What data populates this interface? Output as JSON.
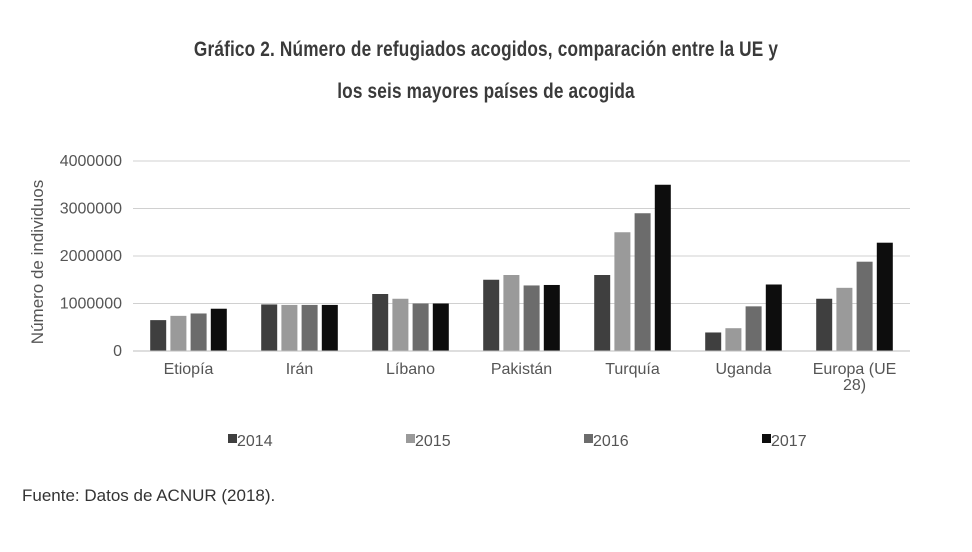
{
  "title_line1": "Gráfico 2. Número de refugiados acogidos, comparación entre la UE y",
  "title_line2": "los seis mayores países de acogida",
  "source": "Fuente: Datos de ACNUR (2018).",
  "chart_data": {
    "type": "bar",
    "ylabel": "Número de individuos",
    "ylim": [
      0,
      4000000
    ],
    "yticks": [
      "0",
      "1000000",
      "2000000",
      "3000000",
      "4000000"
    ],
    "grid": true,
    "legend_position": "bottom",
    "categories": [
      "Etiopía",
      "Irán",
      "Líbano",
      "Pakistán",
      "Turquía",
      "Uganda",
      "Europa (UE 28)"
    ],
    "category_lines": [
      [
        "Etiopía"
      ],
      [
        "Irán"
      ],
      [
        "Líbano"
      ],
      [
        "Pakistán"
      ],
      [
        "Turquía"
      ],
      [
        "Uganda"
      ],
      [
        "Europa (UE",
        "28)"
      ]
    ],
    "series": [
      {
        "name": "2014",
        "color": "#3f3f3f",
        "values": [
          650000,
          980000,
          1200000,
          1500000,
          1600000,
          390000,
          1100000
        ]
      },
      {
        "name": "2015",
        "color": "#9a9a9a",
        "values": [
          740000,
          970000,
          1100000,
          1600000,
          2500000,
          480000,
          1330000
        ]
      },
      {
        "name": "2016",
        "color": "#6c6c6c",
        "values": [
          790000,
          970000,
          1000000,
          1380000,
          2900000,
          940000,
          1880000
        ]
      },
      {
        "name": "2017",
        "color": "#0d0d0d",
        "values": [
          890000,
          970000,
          1000000,
          1390000,
          3500000,
          1400000,
          2280000
        ]
      }
    ]
  }
}
